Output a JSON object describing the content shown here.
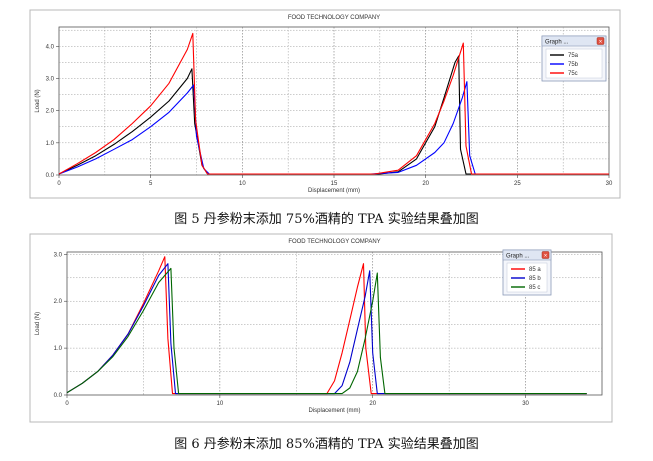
{
  "chart_data": [
    {
      "type": "line",
      "title": "FOOD TECHNOLOGY COMPANY",
      "xlabel": "Displacement (mm)",
      "ylabel": "Load (N)",
      "xlim": [
        0,
        30
      ],
      "ylim": [
        0,
        4.6
      ],
      "x_ticks": [
        0,
        5,
        10,
        15,
        20,
        25,
        30
      ],
      "y_ticks": [
        0.0,
        1.0,
        2.0,
        3.0,
        4.0
      ],
      "grid": true,
      "legend_title": "Graph ...",
      "legend_position": "top-right",
      "series": [
        {
          "name": "75a",
          "color": "#000000",
          "points": [
            [
              0,
              0.03
            ],
            [
              1,
              0.3
            ],
            [
              2,
              0.6
            ],
            [
              3,
              0.95
            ],
            [
              4,
              1.35
            ],
            [
              5,
              1.8
            ],
            [
              6,
              2.3
            ],
            [
              7,
              3.0
            ],
            [
              7.25,
              3.3
            ],
            [
              7.4,
              1.6
            ],
            [
              7.8,
              0.3
            ],
            [
              8.1,
              0.03
            ],
            [
              17.5,
              0.03
            ],
            [
              18.5,
              0.1
            ],
            [
              19.5,
              0.5
            ],
            [
              20.5,
              1.5
            ],
            [
              21,
              2.4
            ],
            [
              21.6,
              3.5
            ],
            [
              21.8,
              3.7
            ],
            [
              21.9,
              0.8
            ],
            [
              22.2,
              0.03
            ],
            [
              30,
              0.03
            ]
          ]
        },
        {
          "name": "75b",
          "color": "#0000ff",
          "points": [
            [
              0,
              0.03
            ],
            [
              1,
              0.25
            ],
            [
              2,
              0.5
            ],
            [
              3,
              0.8
            ],
            [
              4,
              1.1
            ],
            [
              5,
              1.5
            ],
            [
              6,
              1.95
            ],
            [
              7,
              2.55
            ],
            [
              7.35,
              2.8
            ],
            [
              7.5,
              1.2
            ],
            [
              7.9,
              0.2
            ],
            [
              8.2,
              0.03
            ],
            [
              17,
              0.03
            ],
            [
              18.5,
              0.08
            ],
            [
              19.5,
              0.3
            ],
            [
              20.5,
              0.7
            ],
            [
              21,
              1.0
            ],
            [
              21.5,
              1.6
            ],
            [
              22,
              2.4
            ],
            [
              22.25,
              2.9
            ],
            [
              22.4,
              0.6
            ],
            [
              22.7,
              0.03
            ],
            [
              30,
              0.03
            ]
          ]
        },
        {
          "name": "75c",
          "color": "#ff0000",
          "points": [
            [
              0,
              0.03
            ],
            [
              1,
              0.35
            ],
            [
              2,
              0.7
            ],
            [
              3,
              1.1
            ],
            [
              4,
              1.6
            ],
            [
              5,
              2.15
            ],
            [
              6,
              2.85
            ],
            [
              7,
              3.9
            ],
            [
              7.3,
              4.4
            ],
            [
              7.45,
              1.7
            ],
            [
              7.8,
              0.3
            ],
            [
              8.1,
              0.03
            ],
            [
              17.2,
              0.03
            ],
            [
              18.5,
              0.15
            ],
            [
              19.5,
              0.6
            ],
            [
              20.5,
              1.6
            ],
            [
              21,
              2.3
            ],
            [
              21.5,
              3.1
            ],
            [
              22,
              4.0
            ],
            [
              22.05,
              4.1
            ],
            [
              22.2,
              0.9
            ],
            [
              22.5,
              0.03
            ],
            [
              30,
              0.03
            ]
          ]
        }
      ]
    },
    {
      "type": "line",
      "title": "FOOD TECHNOLOGY COMPANY",
      "xlabel": "Displacement (mm)",
      "ylabel": "Load (N)",
      "xlim": [
        0,
        35
      ],
      "ylim": [
        0,
        3.05
      ],
      "x_ticks": [
        0,
        10,
        20,
        30
      ],
      "y_ticks": [
        0.0,
        1.0,
        2.0,
        3.0
      ],
      "grid": true,
      "legend_title": "Graph ...",
      "legend_position": "top-right",
      "series": [
        {
          "name": "85 a",
          "color": "#ff0000",
          "points": [
            [
              0,
              0.05
            ],
            [
              1,
              0.25
            ],
            [
              2,
              0.5
            ],
            [
              3,
              0.85
            ],
            [
              4,
              1.3
            ],
            [
              5,
              1.95
            ],
            [
              6,
              2.65
            ],
            [
              6.4,
              2.95
            ],
            [
              6.6,
              1.2
            ],
            [
              6.9,
              0.03
            ],
            [
              17,
              0.03
            ],
            [
              17.5,
              0.3
            ],
            [
              18,
              0.9
            ],
            [
              18.5,
              1.6
            ],
            [
              19,
              2.3
            ],
            [
              19.4,
              2.8
            ],
            [
              19.55,
              1.0
            ],
            [
              19.9,
              0.03
            ],
            [
              34,
              0.03
            ]
          ]
        },
        {
          "name": "85 b",
          "color": "#0000cc",
          "points": [
            [
              0,
              0.05
            ],
            [
              1,
              0.25
            ],
            [
              2,
              0.5
            ],
            [
              3,
              0.85
            ],
            [
              4,
              1.3
            ],
            [
              5,
              1.9
            ],
            [
              6,
              2.55
            ],
            [
              6.6,
              2.8
            ],
            [
              6.8,
              1.1
            ],
            [
              7.1,
              0.03
            ],
            [
              17.5,
              0.03
            ],
            [
              18,
              0.2
            ],
            [
              18.5,
              0.7
            ],
            [
              19,
              1.4
            ],
            [
              19.5,
              2.1
            ],
            [
              19.8,
              2.65
            ],
            [
              20,
              0.9
            ],
            [
              20.3,
              0.03
            ],
            [
              34,
              0.03
            ]
          ]
        },
        {
          "name": "85 c",
          "color": "#006600",
          "points": [
            [
              0,
              0.05
            ],
            [
              1,
              0.25
            ],
            [
              2,
              0.5
            ],
            [
              3,
              0.82
            ],
            [
              4,
              1.25
            ],
            [
              5,
              1.8
            ],
            [
              6,
              2.4
            ],
            [
              6.8,
              2.7
            ],
            [
              7,
              1.0
            ],
            [
              7.3,
              0.03
            ],
            [
              18,
              0.03
            ],
            [
              18.5,
              0.15
            ],
            [
              19,
              0.5
            ],
            [
              19.5,
              1.2
            ],
            [
              20,
              2.0
            ],
            [
              20.3,
              2.6
            ],
            [
              20.5,
              0.8
            ],
            [
              20.8,
              0.03
            ],
            [
              34,
              0.03
            ]
          ]
        }
      ]
    }
  ],
  "captions": {
    "fig5": "图 5  丹参粉末添加 75%酒精的 TPA 实验结果叠加图",
    "fig6": "图 6  丹参粉末添加 85%酒精的 TPA 实验结果叠加图"
  }
}
